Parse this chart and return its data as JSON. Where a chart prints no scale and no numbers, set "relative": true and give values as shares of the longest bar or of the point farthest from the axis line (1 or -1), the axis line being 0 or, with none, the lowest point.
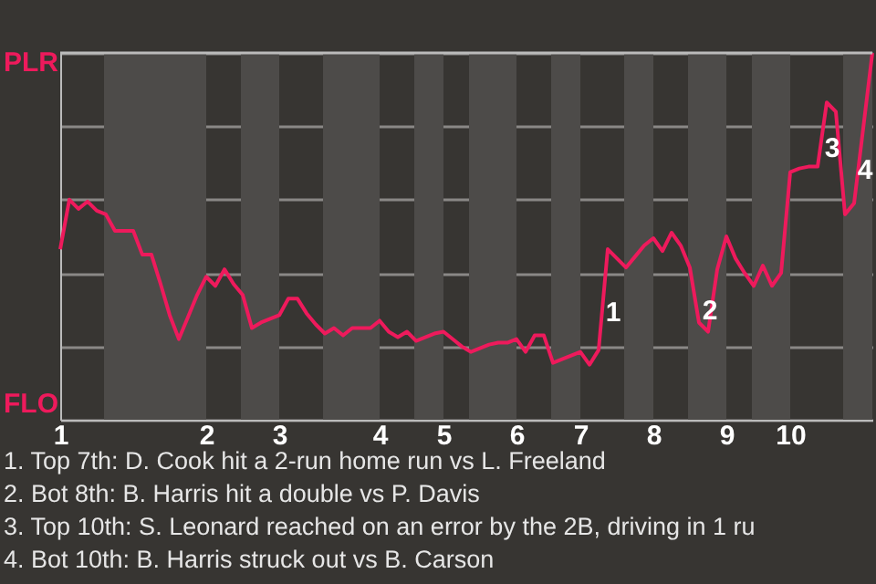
{
  "chart_data": {
    "type": "line",
    "relative": true,
    "categories": [
      "1",
      null,
      null,
      null,
      null,
      null,
      null,
      null,
      null,
      null,
      null,
      null,
      null,
      null,
      null,
      null,
      "2",
      null,
      null,
      null,
      null,
      null,
      null,
      null,
      "3",
      null,
      null,
      null,
      null,
      null,
      null,
      null,
      null,
      null,
      null,
      "4",
      null,
      null,
      null,
      null,
      null,
      null,
      "5",
      null,
      null,
      null,
      null,
      null,
      null,
      null,
      "6",
      null,
      null,
      null,
      null,
      null,
      null,
      "7",
      null,
      null,
      null,
      null,
      null,
      null,
      null,
      "8",
      null,
      null,
      null,
      null,
      null,
      null,
      null,
      "9",
      null,
      null,
      null,
      null,
      null,
      null,
      "10",
      null,
      null,
      null,
      null,
      null,
      null,
      null,
      null,
      null
    ],
    "series": [
      {
        "color": "#ee1a5c",
        "values": [
          0.465,
          0.6,
          0.575,
          0.595,
          0.57,
          0.56,
          0.515,
          0.515,
          0.515,
          0.45,
          0.45,
          0.37,
          0.285,
          0.22,
          0.28,
          0.34,
          0.39,
          0.365,
          0.41,
          0.37,
          0.34,
          0.25,
          0.265,
          0.275,
          0.285,
          0.33,
          0.33,
          0.29,
          0.26,
          0.235,
          0.25,
          0.23,
          0.25,
          0.25,
          0.25,
          0.27,
          0.24,
          0.225,
          0.24,
          0.215,
          0.225,
          0.235,
          0.24,
          0.22,
          0.2,
          0.185,
          0.195,
          0.205,
          0.21,
          0.21,
          0.22,
          0.185,
          0.23,
          0.23,
          0.155,
          0.165,
          0.175,
          0.185,
          0.15,
          0.19,
          0.465,
          0.44,
          0.415,
          0.445,
          0.475,
          0.495,
          0.46,
          0.51,
          0.475,
          0.415,
          0.265,
          0.24,
          0.41,
          0.5,
          0.44,
          0.4,
          0.365,
          0.42,
          0.365,
          0.4,
          0.675,
          0.685,
          0.69,
          0.69,
          0.865,
          0.84,
          0.56,
          0.59,
          0.795,
          1
        ]
      }
    ],
    "grid": "y",
    "line_style": "solid",
    "annotations": [
      "PLR",
      "FLO",
      "1",
      "2",
      "3",
      "4",
      "1. Top 7th: D. Cook hit a 2-run home run vs L. Freeland",
      "2. Bot 8th: B. Harris hit a double vs P. Davis",
      "3. Top 10th: S. Leonard reached on an error by the 2B, driving in 1 ru",
      "4. Bot 10th: B. Harris struck out vs B. Carson"
    ]
  }
}
